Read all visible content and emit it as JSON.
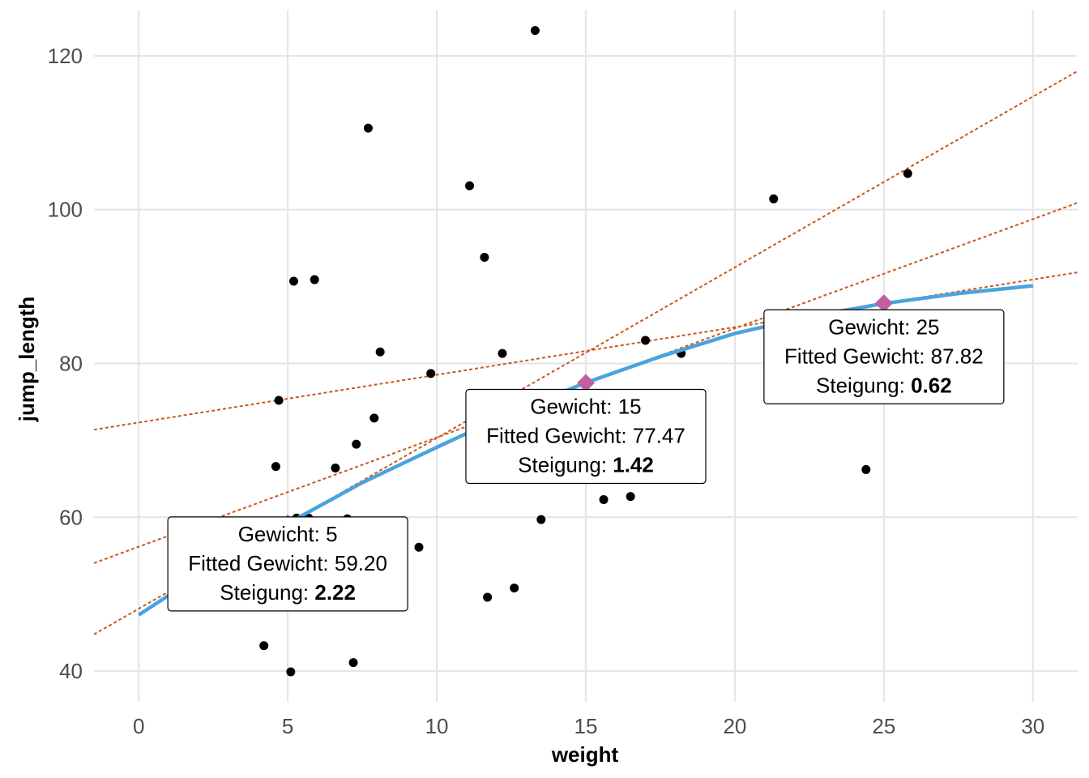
{
  "chart_data": {
    "type": "scatter",
    "xlabel": "weight",
    "ylabel": "jump_length",
    "xlim": [
      -1.5,
      31.5
    ],
    "ylim": [
      36,
      126
    ],
    "x_ticks": [
      0,
      5,
      10,
      15,
      20,
      25,
      30
    ],
    "y_ticks": [
      40,
      60,
      80,
      100,
      120
    ],
    "grid": true,
    "points": [
      {
        "x": 4.2,
        "y": 43.3
      },
      {
        "x": 4.6,
        "y": 66.6
      },
      {
        "x": 4.7,
        "y": 75.2
      },
      {
        "x": 5.1,
        "y": 39.9
      },
      {
        "x": 5.2,
        "y": 90.7
      },
      {
        "x": 5.3,
        "y": 59.9
      },
      {
        "x": 5.7,
        "y": 59.9
      },
      {
        "x": 5.9,
        "y": 90.9
      },
      {
        "x": 6.6,
        "y": 66.4
      },
      {
        "x": 7.0,
        "y": 59.8
      },
      {
        "x": 7.2,
        "y": 41.1
      },
      {
        "x": 7.3,
        "y": 69.5
      },
      {
        "x": 7.7,
        "y": 110.6
      },
      {
        "x": 7.9,
        "y": 72.9
      },
      {
        "x": 8.1,
        "y": 81.5
      },
      {
        "x": 9.4,
        "y": 56.1
      },
      {
        "x": 9.8,
        "y": 78.7
      },
      {
        "x": 11.1,
        "y": 103.1
      },
      {
        "x": 11.6,
        "y": 93.8
      },
      {
        "x": 11.7,
        "y": 49.6
      },
      {
        "x": 12.2,
        "y": 81.3
      },
      {
        "x": 12.6,
        "y": 50.8
      },
      {
        "x": 13.3,
        "y": 123.3
      },
      {
        "x": 13.5,
        "y": 59.7
      },
      {
        "x": 15.6,
        "y": 62.3
      },
      {
        "x": 16.5,
        "y": 62.7
      },
      {
        "x": 17.0,
        "y": 83.0
      },
      {
        "x": 18.2,
        "y": 81.3
      },
      {
        "x": 21.3,
        "y": 101.4
      },
      {
        "x": 24.4,
        "y": 66.2
      },
      {
        "x": 25.8,
        "y": 104.7
      }
    ],
    "fitted_curve": {
      "color": "#4aa3e0",
      "x": [
        0,
        2.5,
        5,
        7.5,
        10,
        12.5,
        15,
        17.5,
        20,
        22.5,
        25,
        27.5,
        30
      ],
      "y": [
        47.3,
        53.6,
        59.2,
        64.5,
        69.1,
        73.6,
        77.5,
        80.9,
        83.9,
        86.1,
        87.8,
        89.1,
        90.1
      ]
    },
    "tangent_color": "#c75a1b",
    "point_color": "#000000",
    "highlight_color": "#c060a0",
    "annotations": [
      {
        "gewicht": 5,
        "fitted": 59.2,
        "slope": 2.22,
        "line1": "Gewicht: 5",
        "line2": "Fitted Gewicht: 59.20",
        "line3_prefix": "Steigung: ",
        "line3_value": "2.22"
      },
      {
        "gewicht": 15,
        "fitted": 77.47,
        "slope": 1.42,
        "line1": "Gewicht: 15",
        "line2": "Fitted Gewicht: 77.47",
        "line3_prefix": "Steigung: ",
        "line3_value": "1.42"
      },
      {
        "gewicht": 25,
        "fitted": 87.82,
        "slope": 0.62,
        "line1": "Gewicht: 25",
        "line2": "Fitted Gewicht: 87.82",
        "line3_prefix": "Steigung: ",
        "line3_value": "0.62"
      }
    ]
  }
}
